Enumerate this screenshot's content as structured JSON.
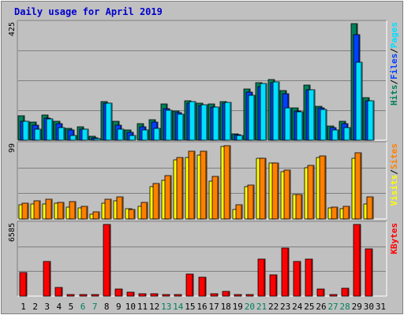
{
  "title": "Daily usage for April 2019",
  "colors": {
    "title": "#0000cc",
    "hits": "#00805c",
    "files": "#0040ff",
    "pages": "#00e0ff",
    "visits": "#ffff00",
    "sites": "#ff8000",
    "kbytes": "#ff0000",
    "weekend_label": "#00805c",
    "weekday_label": "#000000",
    "panel_bg": "#c0c0c0",
    "frame_bg": "#c0c0c0"
  },
  "chart_data": {
    "type": "bar",
    "categories": [
      "1",
      "2",
      "3",
      "4",
      "5",
      "6",
      "7",
      "8",
      "9",
      "10",
      "11",
      "12",
      "13",
      "14",
      "15",
      "16",
      "17",
      "18",
      "19",
      "20",
      "21",
      "22",
      "23",
      "24",
      "25",
      "26",
      "27",
      "28",
      "29",
      "30",
      "31"
    ],
    "weekend_days": [
      6,
      7,
      13,
      14,
      20,
      21,
      27,
      28
    ],
    "panels": [
      {
        "id": "hits-files-pages",
        "ymax": 425,
        "ymax_label": "425",
        "legend": [
          {
            "text": "Hits",
            "color_key": "hits"
          },
          {
            "text": "/",
            "color_key": "weekday_label"
          },
          {
            "text": "Files",
            "color_key": "files"
          },
          {
            "text": "/",
            "color_key": "weekday_label"
          },
          {
            "text": "Pages",
            "color_key": "pages"
          }
        ],
        "series": [
          {
            "name": "Hits",
            "color_key": "hits",
            "values": [
              88,
              66,
              92,
              70,
              44,
              50,
              14,
              140,
              70,
              36,
              60,
              74,
              131,
              106,
              145,
              135,
              131,
              142,
              24,
              187,
              209,
              221,
              181,
              118,
              200,
              124,
              53,
              70,
              425,
              156,
              0
            ]
          },
          {
            "name": "Files",
            "color_key": "files",
            "values": [
              70,
              55,
              80,
              60,
              36,
              40,
              10,
              135,
              55,
              30,
              48,
              65,
              115,
              100,
              135,
              125,
              120,
              135,
              20,
              175,
              195,
              210,
              170,
              105,
              185,
              118,
              46,
              60,
              385,
              145,
              0
            ]
          },
          {
            "name": "Pages",
            "color_key": "pages",
            "values": [
              70,
              40,
              78,
              45,
              18,
              40,
              7,
              135,
              40,
              16,
              38,
              43,
              110,
              95,
              140,
              130,
              122,
              138,
              18,
              164,
              207,
              213,
              118,
              103,
              185,
              113,
              36,
              45,
              284,
              145,
              0
            ]
          }
        ]
      },
      {
        "id": "visits-sites",
        "ymax": 99,
        "ymax_label": "99",
        "legend": [
          {
            "text": "Visits",
            "color_key": "visits"
          },
          {
            "text": "/",
            "color_key": "weekday_label"
          },
          {
            "text": "Sites",
            "color_key": "sites"
          }
        ],
        "series": [
          {
            "name": "Visits",
            "color_key": "visits",
            "values": [
              19,
              20,
              20,
              21,
              16,
              15,
              6,
              21,
              24,
              14,
              17,
              43,
              52,
              79,
              82,
              85,
              51,
              97,
              13,
              43,
              81,
              75,
              63,
              33,
              68,
              82,
              15,
              14,
              81,
              20,
              0
            ]
          },
          {
            "name": "Sites",
            "color_key": "sites",
            "values": [
              21,
              24,
              26,
              22,
              23,
              17,
              10,
              26,
              30,
              13,
              22,
              47,
              58,
              82,
              91,
              91,
              57,
              98,
              19,
              45,
              81,
              75,
              65,
              33,
              72,
              84,
              16,
              17,
              88,
              30,
              0
            ]
          }
        ]
      },
      {
        "id": "kbytes",
        "ymax": 6585,
        "ymax_label": "6585",
        "legend": [
          {
            "text": "KBytes",
            "color_key": "kbytes"
          }
        ],
        "series": [
          {
            "name": "KBytes",
            "color_key": "kbytes",
            "values": [
              2161,
              0,
              3198,
              823,
              100,
              100,
              100,
              6585,
              628,
              327,
              200,
              200,
              100,
              100,
              2027,
              1735,
              200,
              425,
              100,
              100,
              3401,
              1947,
              4436,
              3181,
              3389,
              621,
              100,
              746,
              6585,
              4321,
              0
            ]
          }
        ]
      }
    ]
  }
}
